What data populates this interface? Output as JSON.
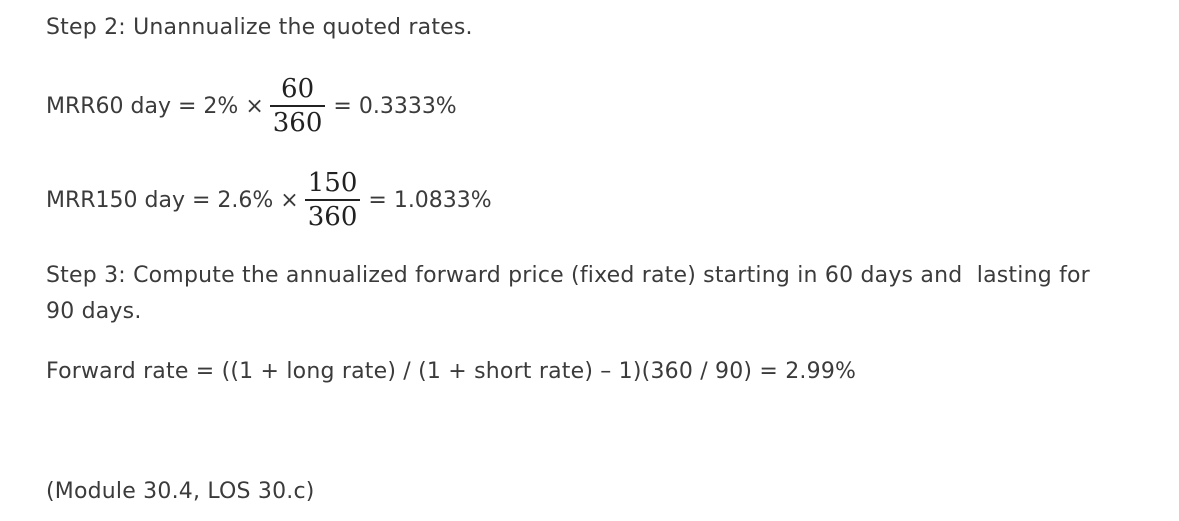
{
  "step2": {
    "title": "Step 2: Unannualize the quoted rates.",
    "eq1": {
      "lhs": "MRR60 day = 2% ×",
      "numerator": "60",
      "denominator": "360",
      "rhs": "= 0.3333%"
    },
    "eq2": {
      "lhs": "MRR150 day = 2.6% ×",
      "numerator": "150",
      "denominator": "360",
      "rhs": "= 1.0833%"
    }
  },
  "step3": {
    "title_line1": "Step 3: Compute the annualized forward price (fixed rate) starting in 60 days and  lasting for",
    "title_line2": "90 days.",
    "formula": "Forward rate = ((1 + long rate) / (1 + short rate) – 1)(360 / 90) = 2.99%"
  },
  "reference": "(Module 30.4, LOS 30.c)"
}
